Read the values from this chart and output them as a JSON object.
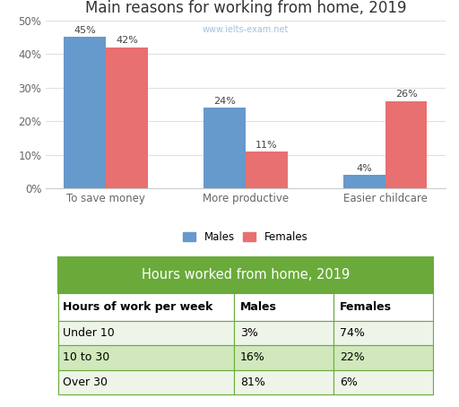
{
  "bar_title": "Main reasons for working from home, 2019",
  "watermark": "www.ielts-exam.net",
  "categories": [
    "To save money",
    "More productive",
    "Easier childcare"
  ],
  "males": [
    45,
    24,
    4
  ],
  "females": [
    42,
    11,
    26
  ],
  "male_color": "#6699CC",
  "female_color": "#E87070",
  "ylim": [
    0,
    50
  ],
  "yticks": [
    0,
    10,
    20,
    30,
    40,
    50
  ],
  "ytick_labels": [
    "0%",
    "10%",
    "20%",
    "30%",
    "40%",
    "50%"
  ],
  "legend_males": "Males",
  "legend_females": "Females",
  "table_title": "Hours worked from home, 2019",
  "table_header": [
    "Hours of work per week",
    "Males",
    "Females"
  ],
  "table_rows": [
    [
      "Under 10",
      "3%",
      "74%"
    ],
    [
      "10 to 30",
      "16%",
      "22%"
    ],
    [
      "Over 30",
      "81%",
      "6%"
    ]
  ],
  "table_header_bg": "#6aaa3a",
  "table_header_color": "#ffffff",
  "table_row_bg_odd": "#eef5e8",
  "table_row_bg_even": "#d0e8bb",
  "table_subheader_bg": "#ffffff",
  "table_border_color": "#6aaa3a",
  "bar_label_fontsize": 8,
  "title_fontsize": 12,
  "tick_fontsize": 8.5,
  "legend_fontsize": 8.5,
  "background_color": "#ffffff"
}
